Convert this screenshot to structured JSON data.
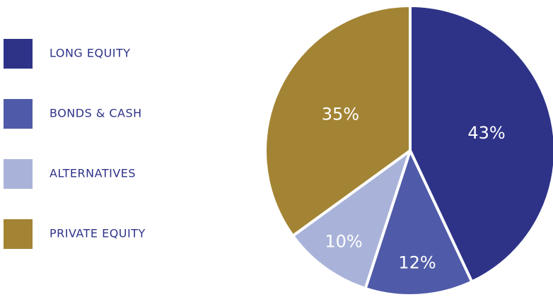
{
  "chart_data": {
    "type": "pie",
    "categories": [
      "LONG EQUITY",
      "BONDS & CASH",
      "ALTERNATIVES",
      "PRIVATE EQUITY"
    ],
    "values": [
      43,
      12,
      10,
      35
    ],
    "value_labels": [
      "43%",
      "12%",
      "10%",
      "35%"
    ],
    "colors": [
      "#2e3388",
      "#4f5ba8",
      "#a9b3da",
      "#a38434"
    ]
  }
}
